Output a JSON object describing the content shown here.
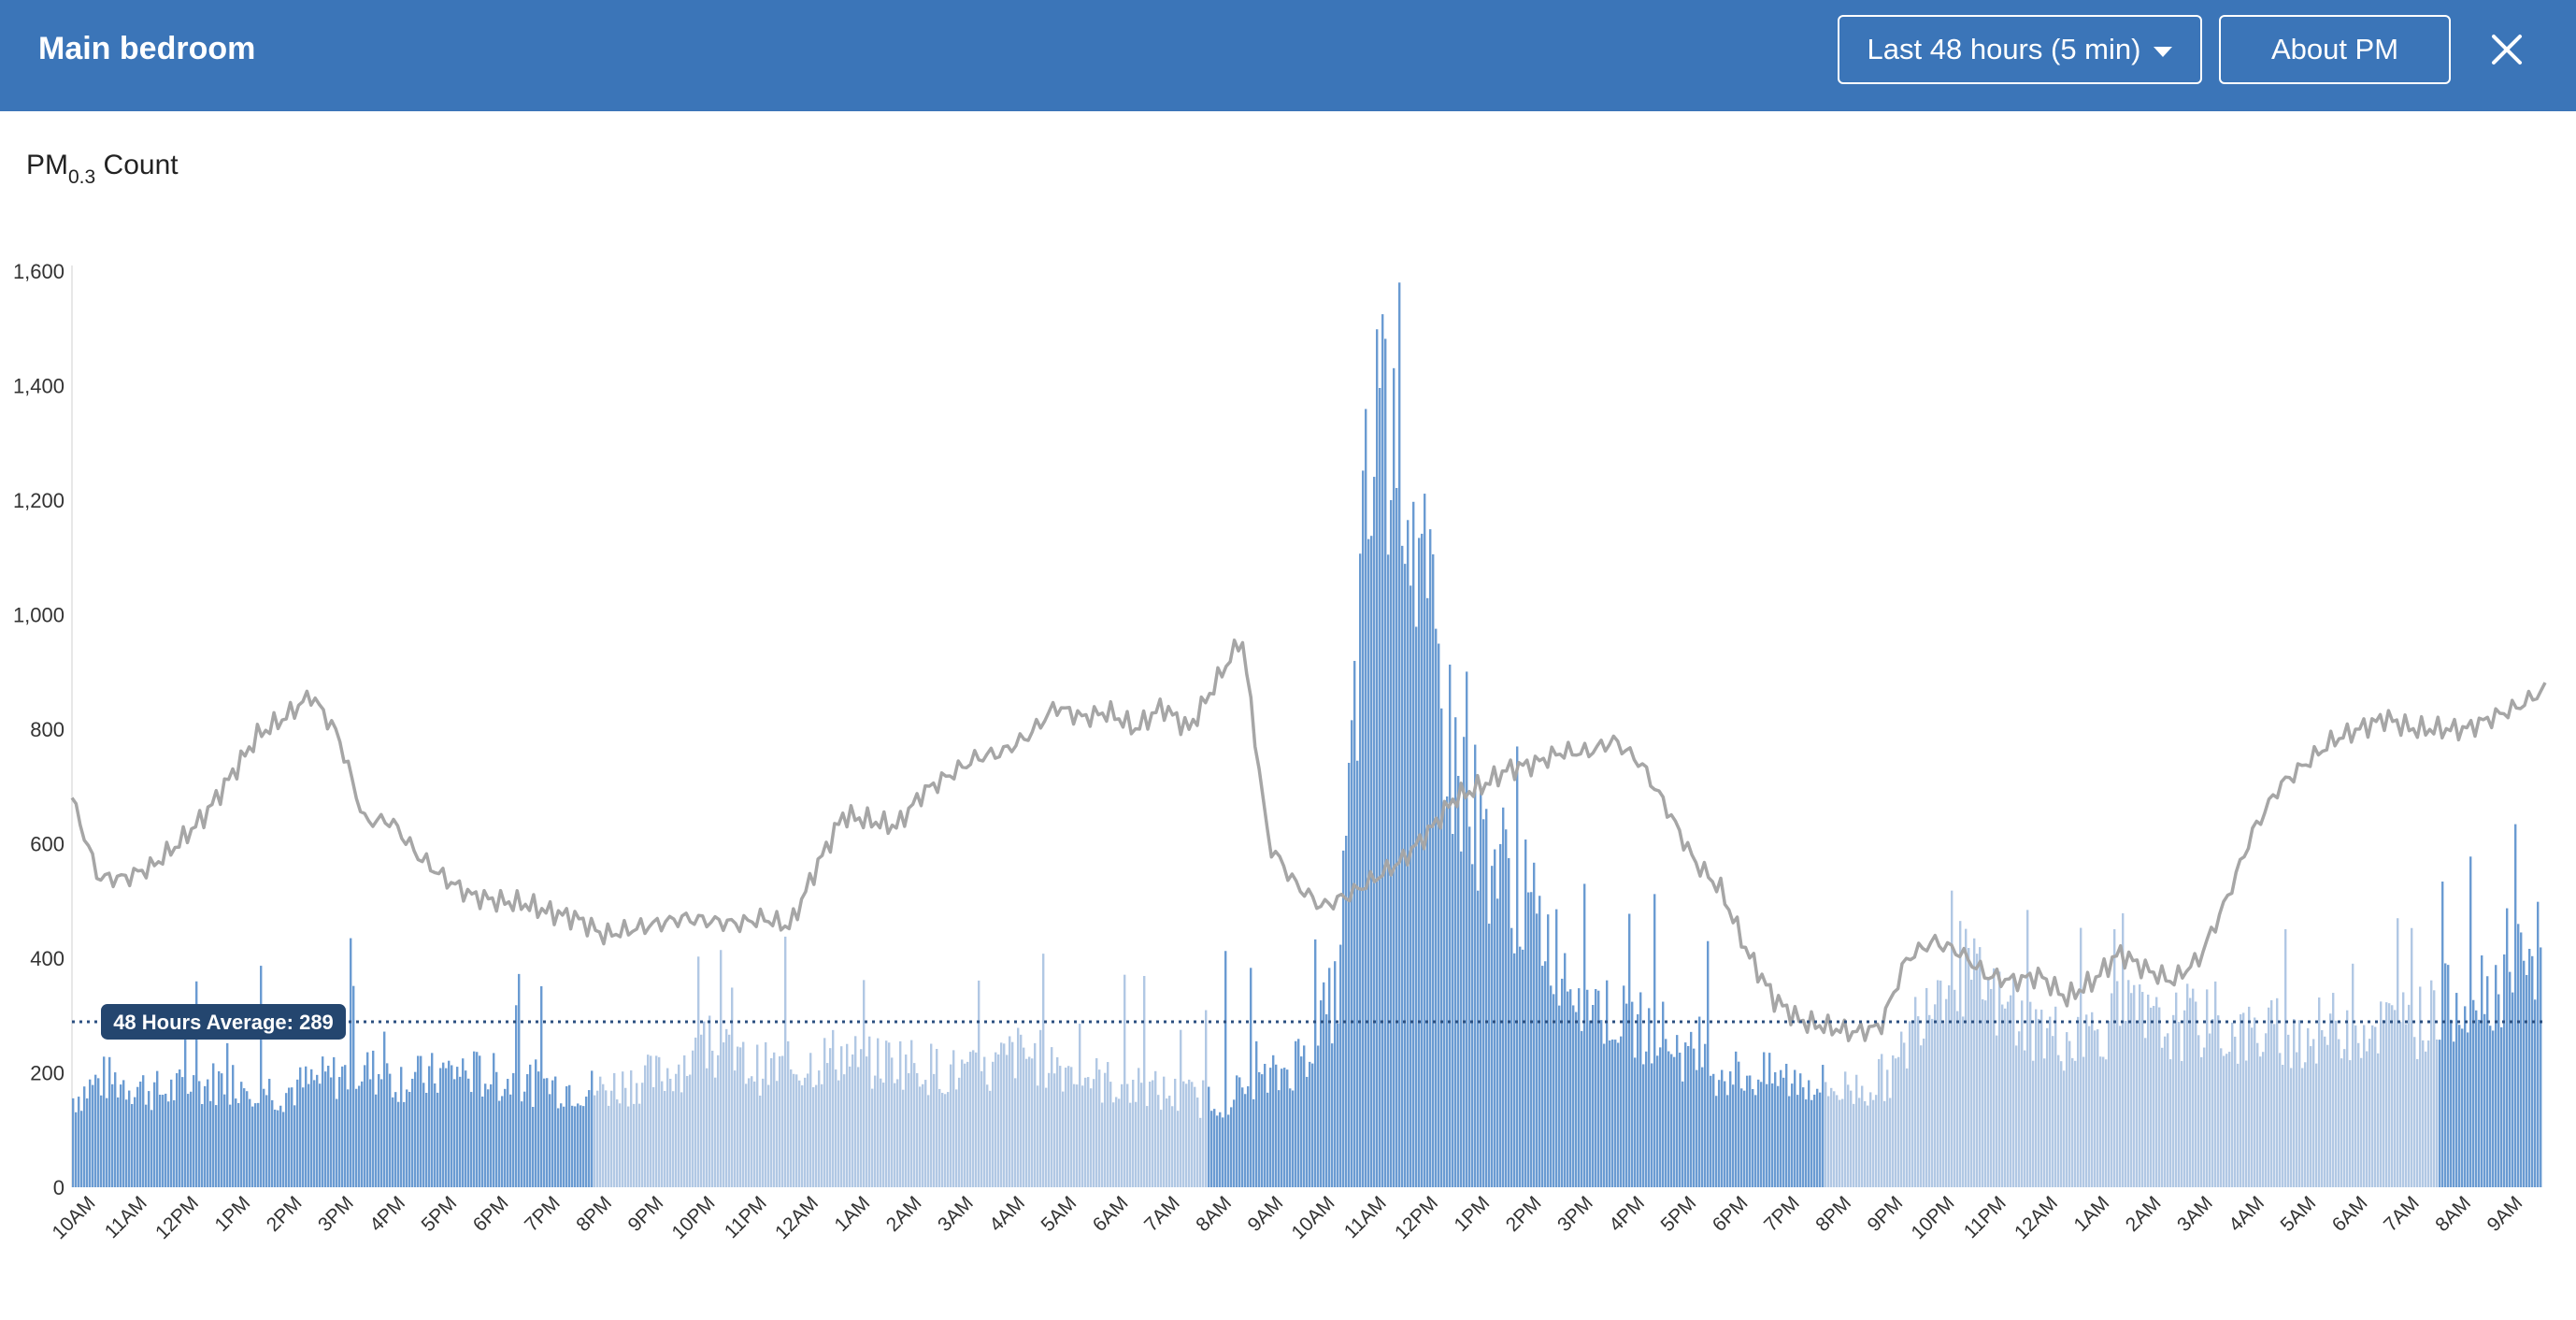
{
  "header": {
    "title": "Main bedroom",
    "range_label": "Last 48 hours (5 min)",
    "about_label": "About PM",
    "close_icon": "close-icon"
  },
  "metric": {
    "prefix": "PM",
    "subscript": "0.3",
    "suffix": " Count"
  },
  "colors": {
    "header_bg": "#3b75b8",
    "bar_dark": "#6a9bd2",
    "bar_light": "#b1c8e4",
    "line": "#a6a6a6",
    "average_line": "#2b4f80",
    "badge_bg": "#24466f"
  },
  "chart_data": {
    "type": "bar",
    "ylim": [
      0,
      1600
    ],
    "y_ticks": [
      "0",
      "200",
      "400",
      "600",
      "800",
      "1,000",
      "1,200",
      "1,400",
      "1,600"
    ],
    "y_tick_values": [
      0,
      200,
      400,
      600,
      800,
      1000,
      1200,
      1400,
      1600
    ],
    "x_tick_labels": [
      "10AM",
      "11AM",
      "12PM",
      "1PM",
      "2PM",
      "3PM",
      "4PM",
      "5PM",
      "6PM",
      "7PM",
      "8PM",
      "9PM",
      "10PM",
      "11PM",
      "12AM",
      "1AM",
      "2AM",
      "3AM",
      "4AM",
      "5AM",
      "6AM",
      "7AM",
      "8AM",
      "9AM",
      "10AM",
      "11AM",
      "12PM",
      "1PM",
      "2PM",
      "3PM",
      "4PM",
      "5PM",
      "6PM",
      "7PM",
      "8PM",
      "9PM",
      "10PM",
      "11PM",
      "12AM",
      "1AM",
      "2AM",
      "3AM",
      "4AM",
      "5AM",
      "6AM",
      "7AM",
      "8AM",
      "9AM"
    ],
    "average": {
      "label": "48 Hours Average: 289",
      "value": 289
    },
    "shading_note": "bar color alternates dark/light by 12-hour period (day vs night)",
    "bar_hourly_levels": [
      160,
      195,
      185,
      170,
      180,
      190,
      190,
      170,
      185,
      200,
      210,
      195,
      195,
      210,
      200,
      190,
      185,
      180,
      175,
      190,
      200,
      230,
      240,
      215,
      210,
      220,
      240,
      220,
      230,
      215,
      205,
      200,
      240,
      230,
      210,
      190,
      180,
      170,
      160,
      160,
      175,
      200,
      250,
      350,
      1200,
      1500,
      1000,
      750,
      620,
      540,
      460,
      380,
      320,
      290,
      280,
      230,
      210,
      200,
      195,
      190,
      175,
      180,
      210,
      350,
      400,
      350,
      300,
      280,
      260,
      290,
      310,
      280,
      300,
      280,
      270,
      280,
      270,
      290,
      290,
      290,
      300,
      340,
      360,
      370,
      380
    ],
    "line_hourly": [
      680,
      540,
      540,
      560,
      600,
      650,
      720,
      790,
      820,
      860,
      790,
      640,
      640,
      580,
      540,
      510,
      500,
      495,
      480,
      470,
      440,
      450,
      460,
      470,
      465,
      460,
      470,
      455,
      560,
      650,
      640,
      630,
      690,
      720,
      750,
      760,
      790,
      840,
      820,
      830,
      800,
      840,
      800,
      880,
      960,
      600,
      530,
      490,
      510,
      540,
      570,
      620,
      680,
      700,
      730,
      740,
      760,
      760,
      780,
      740,
      660,
      570,
      520,
      410,
      330,
      290,
      280,
      270,
      280,
      400,
      430,
      410,
      370,
      360,
      370,
      330,
      360,
      410,
      380,
      360,
      400,
      500,
      620,
      700,
      740,
      780,
      800,
      820,
      800,
      800,
      800,
      820,
      840,
      870
    ],
    "series": [
      {
        "name": "",
        "type": "bar",
        "values_by_hour": "bar_hourly_levels"
      },
      {
        "name": "",
        "type": "line",
        "values_by_hour": "line_hourly"
      }
    ]
  }
}
